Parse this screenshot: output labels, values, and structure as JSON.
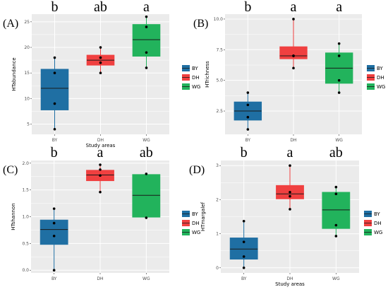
{
  "chart_data": [
    {
      "type": "box",
      "panel": "(A)",
      "ylabel": "HTabundance",
      "xlabel": "Study areas",
      "categories": [
        "BY",
        "DH",
        "WG"
      ],
      "ylim": [
        3,
        26.5
      ],
      "yticks": [
        5,
        10,
        15,
        20,
        25
      ],
      "yticklabels": [
        "5",
        "10",
        "15",
        "20",
        "25"
      ],
      "significance": [
        "b",
        "ab",
        "a"
      ],
      "boxes": [
        {
          "category": "BY",
          "min": 4,
          "q1": 7.75,
          "median": 12,
          "q3": 15.75,
          "max": 18
        },
        {
          "category": "DH",
          "min": 15,
          "q1": 16.5,
          "median": 17.5,
          "q3": 18.5,
          "max": 20
        },
        {
          "category": "WG",
          "min": 16,
          "q1": 18.25,
          "median": 21.5,
          "q3": 24.5,
          "max": 26
        }
      ],
      "points": [
        {
          "category": "BY",
          "values": [
            4,
            9,
            15,
            18
          ]
        },
        {
          "category": "DH",
          "values": [
            15,
            17,
            18,
            20
          ]
        },
        {
          "category": "WG",
          "values": [
            16,
            19,
            24,
            26
          ]
        }
      ],
      "legend": [
        "BY",
        "DH",
        "WG"
      ]
    },
    {
      "type": "box",
      "panel": "(B)",
      "ylabel": "HTrichness",
      "xlabel": "",
      "categories": [
        "BY",
        "DH",
        "WG"
      ],
      "ylim": [
        0.6,
        10.4
      ],
      "yticks": [
        2.5,
        5,
        7.5,
        10
      ],
      "yticklabels": [
        "2.5",
        "5.0",
        "7.5",
        "10.0"
      ],
      "significance": [
        "b",
        "a",
        "a"
      ],
      "boxes": [
        {
          "category": "BY",
          "min": 1,
          "q1": 1.75,
          "median": 2.5,
          "q3": 3.25,
          "max": 4
        },
        {
          "category": "DH",
          "min": 6,
          "q1": 6.75,
          "median": 7,
          "q3": 7.75,
          "max": 10
        },
        {
          "category": "WG",
          "min": 4,
          "q1": 4.75,
          "median": 6,
          "q3": 7.25,
          "max": 8
        }
      ],
      "points": [
        {
          "category": "BY",
          "values": [
            1,
            2,
            3,
            4
          ]
        },
        {
          "category": "DH",
          "values": [
            6,
            7,
            7,
            10
          ]
        },
        {
          "category": "WG",
          "values": [
            4,
            5,
            7,
            8
          ]
        }
      ],
      "legend": [
        "BY",
        "DH",
        "WG"
      ]
    },
    {
      "type": "box",
      "panel": "(C)",
      "ylabel": "HTshannon",
      "xlabel": "",
      "categories": [
        "BY",
        "DH",
        "WG"
      ],
      "ylim": [
        -0.05,
        2.05
      ],
      "yticks": [
        0,
        0.5,
        1,
        1.5,
        2
      ],
      "yticklabels": [
        "0.0",
        "0.5",
        "1.0",
        "1.5",
        "2.0"
      ],
      "significance": [
        "b",
        "a",
        "ab"
      ],
      "boxes": [
        {
          "category": "BY",
          "min": 0,
          "q1": 0.48,
          "median": 0.76,
          "q3": 0.94,
          "max": 1.15
        },
        {
          "category": "DH",
          "min": 1.46,
          "q1": 1.67,
          "median": 1.78,
          "q3": 1.87,
          "max": 1.97
        },
        {
          "category": "WG",
          "min": 0.98,
          "q1": 0.99,
          "median": 1.4,
          "q3": 1.79,
          "max": 1.8
        }
      ],
      "points": [
        {
          "category": "BY",
          "values": [
            0,
            0.64,
            0.88,
            1.15
          ]
        },
        {
          "category": "DH",
          "values": [
            1.46,
            1.77,
            1.88,
            1.97
          ]
        },
        {
          "category": "WG",
          "values": [
            0.98,
            1.8
          ]
        }
      ],
      "legend": [
        "BY",
        "DH",
        "WG"
      ]
    },
    {
      "type": "box",
      "panel": "(D)",
      "ylabel": "HTmargalef",
      "xlabel": "Study areas",
      "categories": [
        "BY",
        "DH",
        "WG"
      ],
      "ylim": [
        -0.15,
        3.15
      ],
      "yticks": [
        0,
        1,
        2,
        3
      ],
      "yticklabels": [
        "0",
        "1",
        "2",
        "3"
      ],
      "significance": [
        "b",
        "a",
        "ab"
      ],
      "boxes": [
        {
          "category": "BY",
          "min": 0,
          "q1": 0.25,
          "median": 0.55,
          "q3": 0.88,
          "max": 1.37
        },
        {
          "category": "DH",
          "min": 1.72,
          "q1": 2.02,
          "median": 2.17,
          "q3": 2.42,
          "max": 3.0
        },
        {
          "category": "WG",
          "min": 0.93,
          "q1": 1.15,
          "median": 1.7,
          "q3": 2.22,
          "max": 2.37
        }
      ],
      "points": [
        {
          "category": "BY",
          "values": [
            0,
            0.33,
            0.76,
            1.37
          ]
        },
        {
          "category": "DH",
          "values": [
            1.72,
            2.1,
            2.22,
            3.0
          ]
        },
        {
          "category": "WG",
          "values": [
            0.93,
            1.25,
            2.17,
            2.37
          ]
        }
      ],
      "legend": [
        "BY",
        "DH",
        "WG"
      ]
    }
  ],
  "colors": {
    "BY": "#1f6fa3",
    "DH": "#f04040",
    "WG": "#22b35c",
    "panel_bg": "#ebebeb",
    "grid": "#ffffff"
  }
}
